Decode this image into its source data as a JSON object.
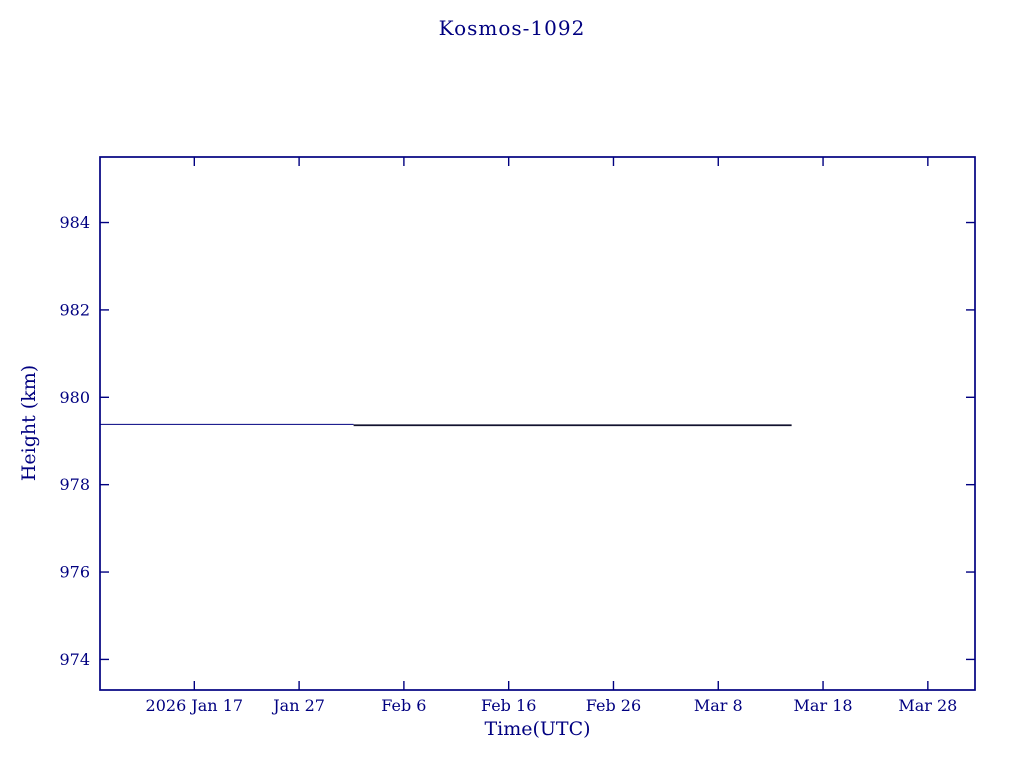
{
  "page": {
    "background": "#ffffff"
  },
  "chart_data": {
    "type": "line",
    "title": "Kosmos-1092",
    "xlabel": "Time(UTC)",
    "ylabel": "Height (km)",
    "axis_color": "#000080",
    "text_color": "#000080",
    "grid": false,
    "legend": "none",
    "x_unit": "days since 2026 Jan 8 (UTC)",
    "xlim": [
      0,
      83.5
    ],
    "ylim": [
      973.3,
      985.5
    ],
    "x_ticks": [
      {
        "day": 9,
        "label": "2026 Jan 17"
      },
      {
        "day": 19,
        "label": "Jan 27"
      },
      {
        "day": 29,
        "label": "Feb 6"
      },
      {
        "day": 39,
        "label": "Feb 16"
      },
      {
        "day": 49,
        "label": "Feb 26"
      },
      {
        "day": 59,
        "label": "Mar 8"
      },
      {
        "day": 69,
        "label": "Mar 18"
      },
      {
        "day": 79,
        "label": "Mar 28"
      }
    ],
    "y_ticks": [
      974,
      976,
      978,
      980,
      982,
      984
    ],
    "series": [
      {
        "name": "height-segment-1",
        "color": "#000080",
        "width": 1.1,
        "x": [
          0,
          24.2
        ],
        "y": [
          979.38,
          979.38
        ]
      },
      {
        "name": "height-segment-2",
        "color": "#12122e",
        "width": 1.8,
        "x": [
          24.2,
          66
        ],
        "y": [
          979.36,
          979.36
        ]
      }
    ]
  }
}
